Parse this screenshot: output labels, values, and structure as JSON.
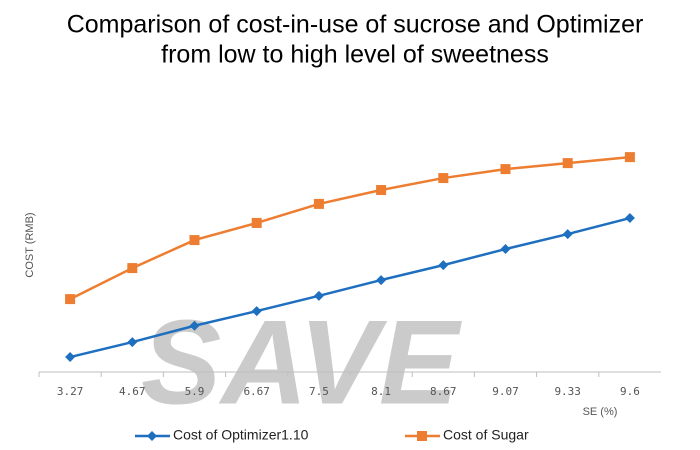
{
  "chart_data": {
    "type": "line",
    "title": [
      "Comparison of cost-in-use of sucrose and Optimizer",
      "from low to high level of sweetness"
    ],
    "x_label": "SE (%)",
    "y_label": "COST (RMB)",
    "categories": [
      "3.27",
      "4.67",
      "5.9",
      "6.67",
      "7.5",
      "8.1",
      "8.67",
      "9.07",
      "9.33",
      "9.6"
    ],
    "series": [
      {
        "name": "Cost of Optimizer1.10",
        "color": "#1f6fc0",
        "marker": "diamond",
        "values": [
          5.5,
          11,
          17,
          22.4,
          28,
          33.8,
          39.3,
          45.2,
          50.7,
          56.6
        ]
      },
      {
        "name": "Cost of Sugar",
        "color": "#ed7d31",
        "marker": "square",
        "values": [
          26.8,
          38.2,
          48.5,
          54.8,
          61.8,
          66.9,
          71.3,
          74.6,
          76.8,
          79
        ]
      }
    ],
    "ylim": [
      0,
      100
    ],
    "grid": false,
    "legend": "bottom",
    "watermark": "SAVE"
  }
}
